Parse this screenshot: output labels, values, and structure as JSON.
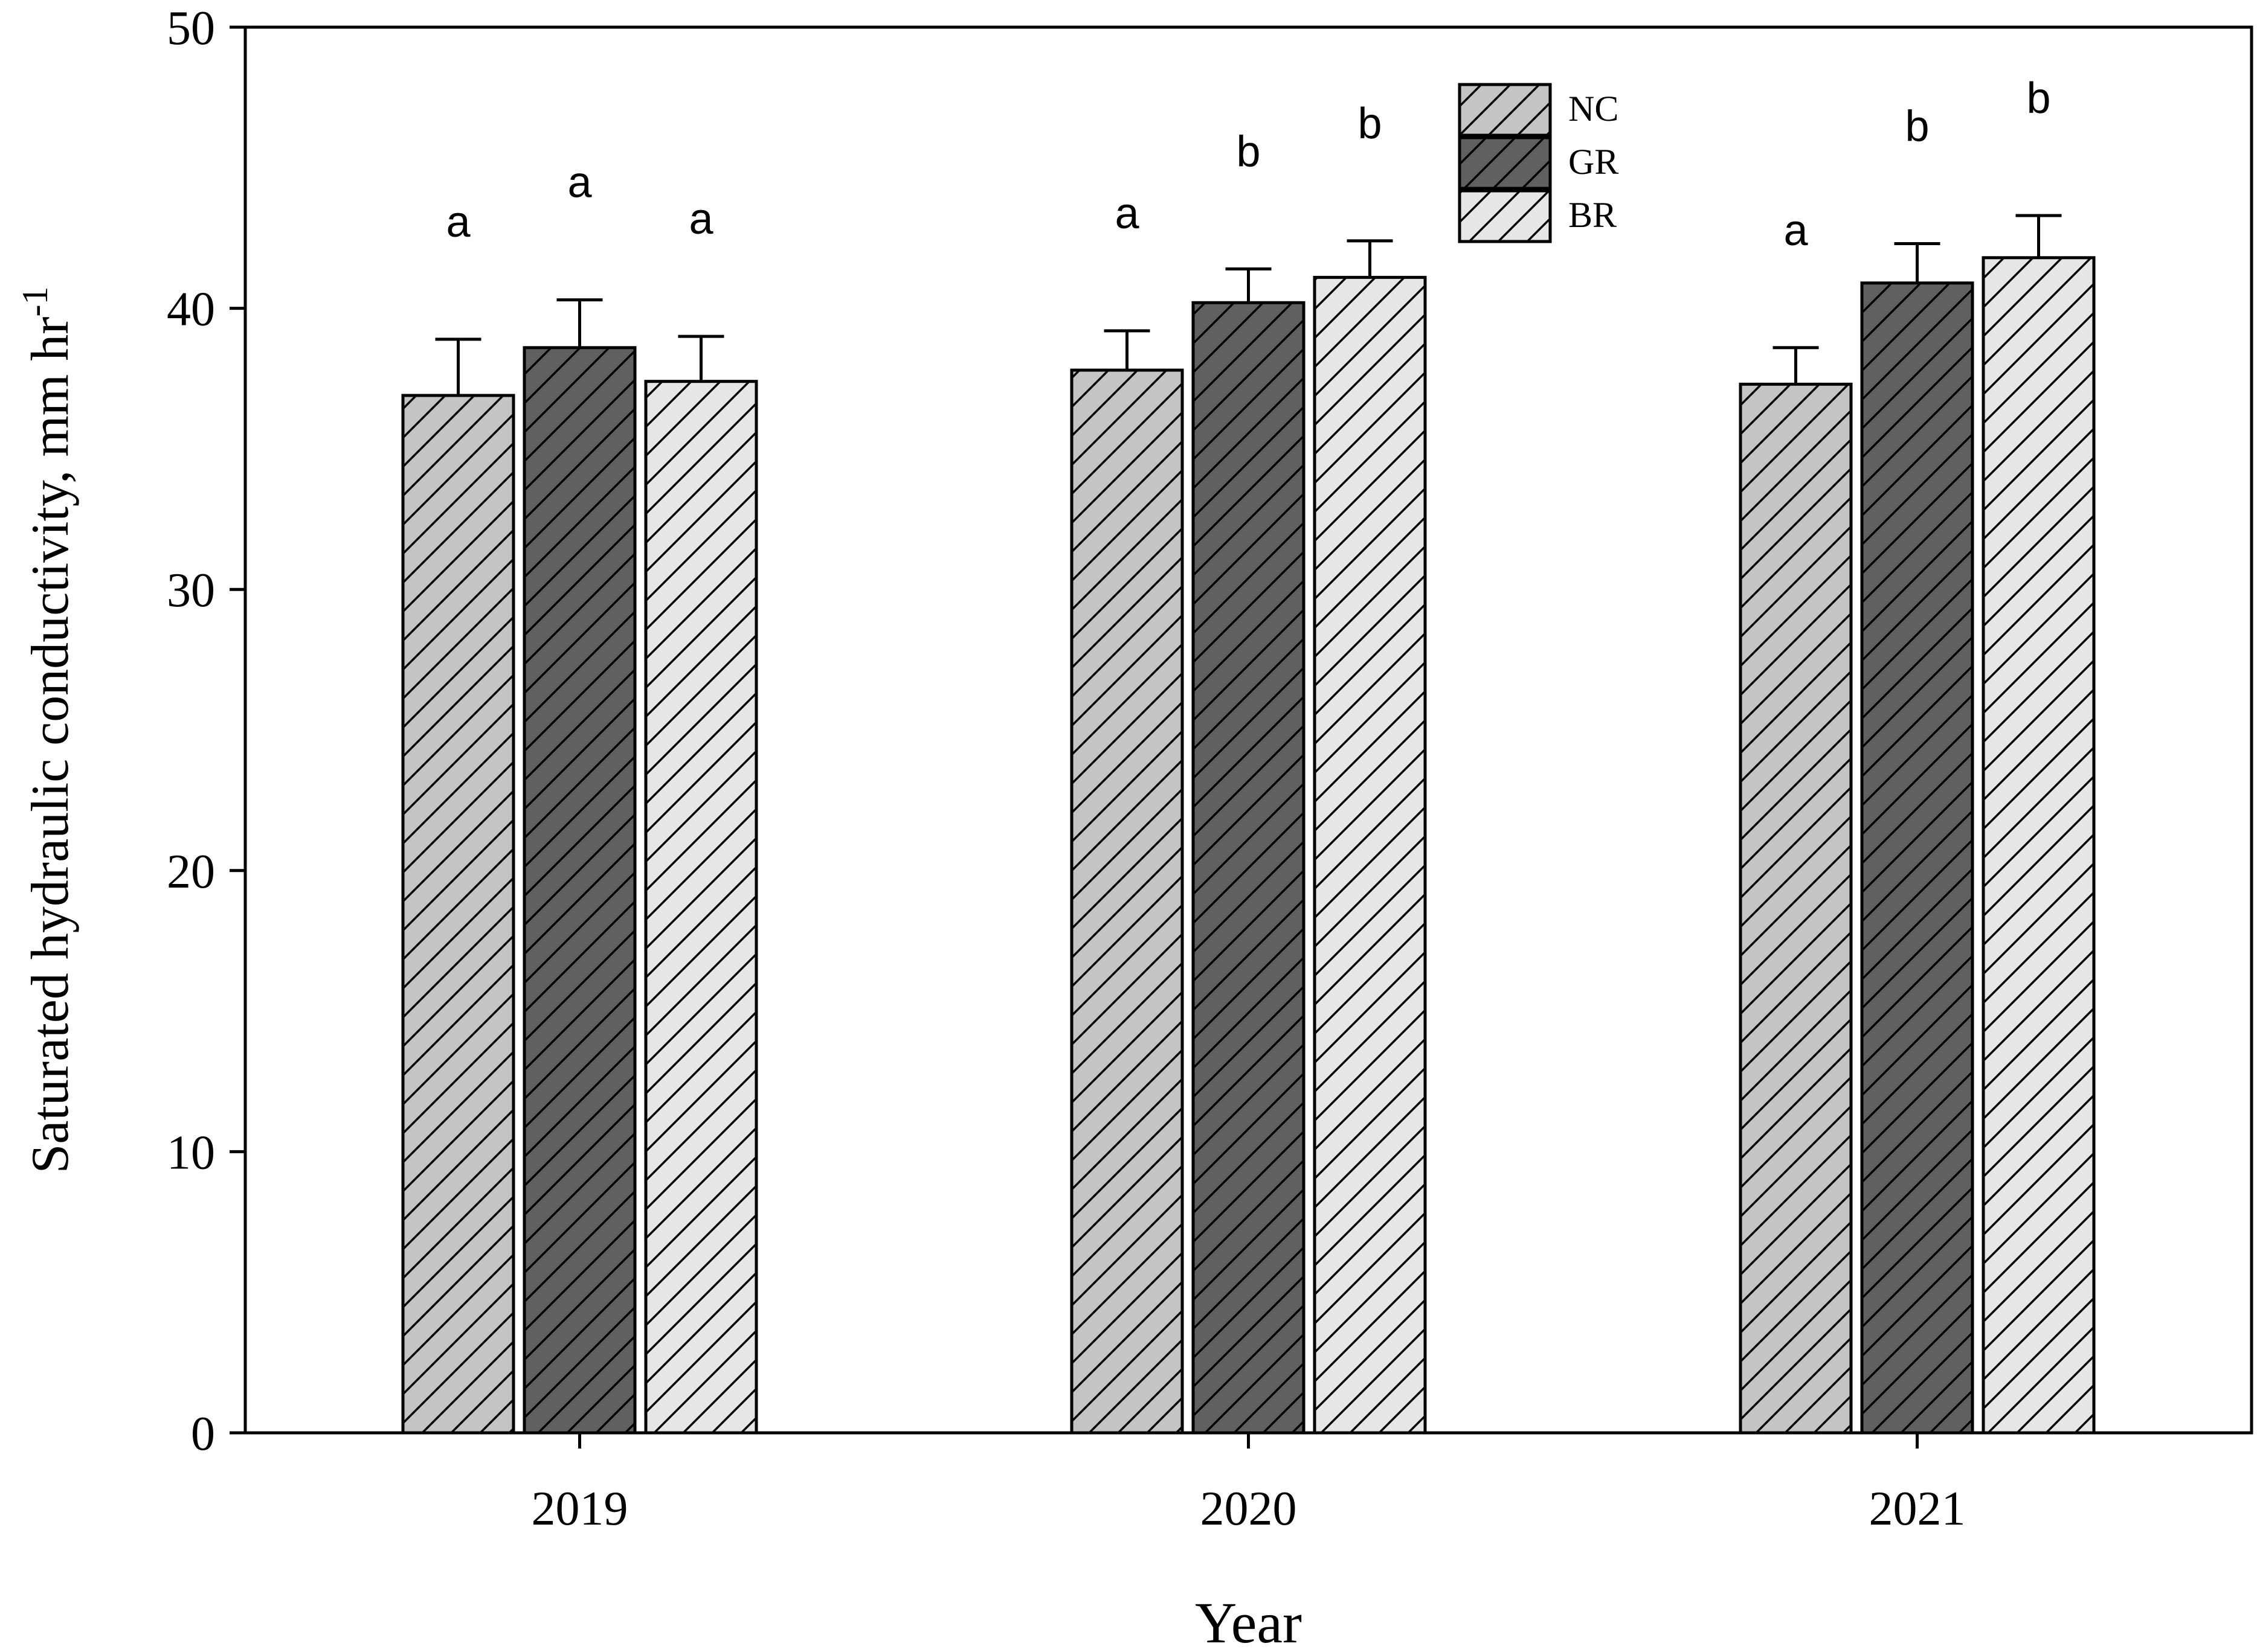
{
  "chart_data": {
    "type": "bar",
    "categories": [
      "2019",
      "2020",
      "2021"
    ],
    "series": [
      {
        "name": "NC",
        "values": [
          36.9,
          37.8,
          37.3
        ],
        "errors": [
          2.0,
          1.4,
          1.3
        ],
        "letters": [
          "a",
          "a",
          "a"
        ],
        "fill": "#c4c4c4"
      },
      {
        "name": "GR",
        "values": [
          38.6,
          40.2,
          40.9
        ],
        "errors": [
          1.7,
          1.2,
          1.4
        ],
        "letters": [
          "a",
          "b",
          "b"
        ],
        "fill": "#606060"
      },
      {
        "name": "BR",
        "values": [
          37.4,
          41.1,
          41.8
        ],
        "errors": [
          1.6,
          1.3,
          1.5
        ],
        "letters": [
          "a",
          "b",
          "b"
        ],
        "fill": "#e6e6e6"
      }
    ],
    "xlabel": "Year",
    "ylabel": "Saturated  hydraulic conductivity, mm hr",
    "ylabel_superscript": "-1",
    "ylim": [
      0,
      50
    ],
    "yticks": [
      "0",
      "10",
      "20",
      "30",
      "40",
      "50"
    ],
    "grid": false,
    "legend_position": "top-center",
    "pattern": "diagonal-hatch"
  }
}
